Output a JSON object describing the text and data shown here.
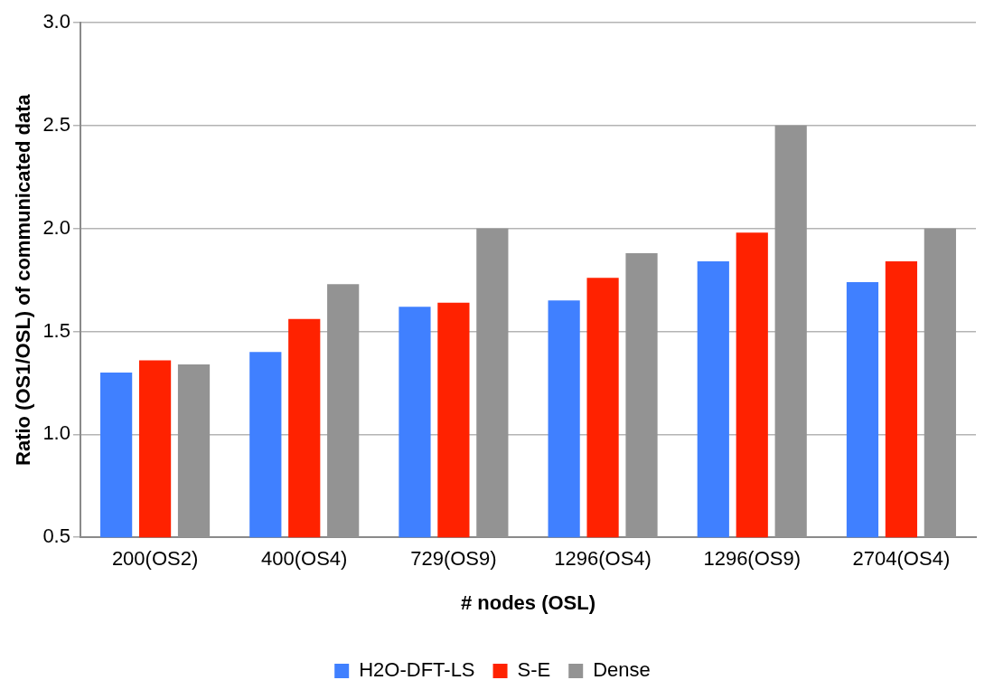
{
  "chart_data": {
    "type": "bar",
    "xlabel": "# nodes (OSL)",
    "ylabel": "Ratio (OS1/OSL) of communicated data",
    "categories": [
      "200(OS2)",
      "400(OS4)",
      "729(OS9)",
      "1296(OS4)",
      "1296(OS9)",
      "2704(OS4)"
    ],
    "series": [
      {
        "name": "H2O-DFT-LS",
        "color": "#4080ff",
        "values": [
          1.3,
          1.4,
          1.62,
          1.65,
          1.84,
          1.74
        ]
      },
      {
        "name": "S-E",
        "color": "#ff2200",
        "values": [
          1.36,
          1.56,
          1.64,
          1.76,
          1.98,
          1.84
        ]
      },
      {
        "name": "Dense",
        "color": "#939393",
        "values": [
          1.34,
          1.73,
          2.0,
          1.88,
          2.5,
          2.0
        ]
      }
    ],
    "ylim": [
      0.5,
      3.0
    ],
    "yticks": [
      0.5,
      {
        "value": 1,
        "label": "1.0"
      },
      1.5,
      {
        "value": 2,
        "label": "2.0"
      },
      2.5,
      {
        "value": 3,
        "label": "3.0"
      }
    ],
    "grid": "y",
    "legend": "bottom"
  }
}
